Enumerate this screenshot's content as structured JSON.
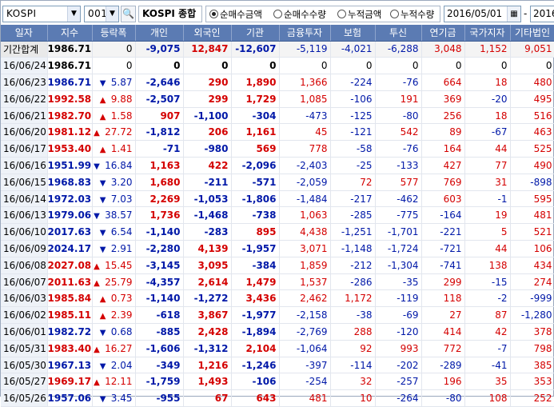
{
  "toolbar": {
    "market": "KOSPI",
    "code": "001",
    "name": "KOSPI 종합",
    "radios": [
      "순매수금액",
      "순매수수량",
      "누적금액",
      "누적수량"
    ],
    "selected_radio": 0,
    "start_date": "2016/05/01",
    "end_date": "2016/"
  },
  "columns": [
    "일자",
    "지수",
    "등락폭",
    "개인",
    "외국인",
    "기관",
    "금융투자",
    "보험",
    "투신",
    "연기금",
    "국가지자",
    "기타법인"
  ],
  "summary": {
    "label": "기간합계",
    "index": "1986.71",
    "change": "0",
    "values": [
      "-9,075",
      "12,847",
      "-12,607",
      "-5,119",
      "-4,021",
      "-6,288",
      "3,048",
      "1,152",
      "9,051"
    ]
  },
  "rows": [
    {
      "date": "16/06/24",
      "index": "1986.71",
      "dir": "none",
      "change": "0",
      "values": [
        "0",
        "0",
        "0",
        "0",
        "0",
        "0",
        "0",
        "0",
        "0"
      ]
    },
    {
      "date": "16/06/23",
      "index": "1986.71",
      "dir": "down",
      "change": "5.87",
      "values": [
        "-2,646",
        "290",
        "1,890",
        "1,366",
        "-224",
        "-76",
        "664",
        "18",
        "480"
      ]
    },
    {
      "date": "16/06/22",
      "index": "1992.58",
      "dir": "up",
      "change": "9.88",
      "values": [
        "-2,507",
        "299",
        "1,729",
        "1,085",
        "-106",
        "191",
        "369",
        "-20",
        "495"
      ]
    },
    {
      "date": "16/06/21",
      "index": "1982.70",
      "dir": "up",
      "change": "1.58",
      "values": [
        "907",
        "-1,100",
        "-304",
        "-473",
        "-125",
        "-80",
        "256",
        "18",
        "516"
      ]
    },
    {
      "date": "16/06/20",
      "index": "1981.12",
      "dir": "up",
      "change": "27.72",
      "values": [
        "-1,812",
        "206",
        "1,161",
        "45",
        "-121",
        "542",
        "89",
        "-67",
        "463"
      ]
    },
    {
      "date": "16/06/17",
      "index": "1953.40",
      "dir": "up",
      "change": "1.41",
      "values": [
        "-71",
        "-980",
        "569",
        "778",
        "-58",
        "-76",
        "164",
        "44",
        "525"
      ]
    },
    {
      "date": "16/06/16",
      "index": "1951.99",
      "dir": "down",
      "change": "16.84",
      "values": [
        "1,163",
        "422",
        "-2,096",
        "-2,403",
        "-25",
        "-133",
        "427",
        "77",
        "490"
      ]
    },
    {
      "date": "16/06/15",
      "index": "1968.83",
      "dir": "down",
      "change": "3.20",
      "values": [
        "1,680",
        "-211",
        "-571",
        "-2,059",
        "72",
        "577",
        "769",
        "31",
        "-898"
      ]
    },
    {
      "date": "16/06/14",
      "index": "1972.03",
      "dir": "down",
      "change": "7.03",
      "values": [
        "2,269",
        "-1,053",
        "-1,806",
        "-1,484",
        "-217",
        "-462",
        "603",
        "-1",
        "595"
      ]
    },
    {
      "date": "16/06/13",
      "index": "1979.06",
      "dir": "down",
      "change": "38.57",
      "values": [
        "1,736",
        "-1,468",
        "-738",
        "1,063",
        "-285",
        "-775",
        "-164",
        "19",
        "481"
      ]
    },
    {
      "date": "16/06/10",
      "index": "2017.63",
      "dir": "down",
      "change": "6.54",
      "values": [
        "-1,140",
        "-283",
        "895",
        "4,438",
        "-1,251",
        "-1,701",
        "-221",
        "5",
        "521"
      ]
    },
    {
      "date": "16/06/09",
      "index": "2024.17",
      "dir": "down",
      "change": "2.91",
      "values": [
        "-2,280",
        "4,139",
        "-1,957",
        "3,071",
        "-1,148",
        "-1,724",
        "-721",
        "44",
        "106"
      ]
    },
    {
      "date": "16/06/08",
      "index": "2027.08",
      "dir": "up",
      "change": "15.45",
      "values": [
        "-3,145",
        "3,095",
        "-384",
        "1,859",
        "-212",
        "-1,304",
        "-741",
        "138",
        "434"
      ]
    },
    {
      "date": "16/06/07",
      "index": "2011.63",
      "dir": "up",
      "change": "25.79",
      "values": [
        "-4,357",
        "2,614",
        "1,479",
        "1,537",
        "-286",
        "-35",
        "299",
        "-15",
        "274"
      ]
    },
    {
      "date": "16/06/03",
      "index": "1985.84",
      "dir": "up",
      "change": "0.73",
      "values": [
        "-1,140",
        "-1,272",
        "3,436",
        "2,462",
        "1,172",
        "-119",
        "118",
        "-2",
        "-999"
      ]
    },
    {
      "date": "16/06/02",
      "index": "1985.11",
      "dir": "up",
      "change": "2.39",
      "values": [
        "-618",
        "3,867",
        "-1,977",
        "-2,158",
        "-38",
        "-69",
        "27",
        "87",
        "-1,280"
      ]
    },
    {
      "date": "16/06/01",
      "index": "1982.72",
      "dir": "down",
      "change": "0.68",
      "values": [
        "-885",
        "2,428",
        "-1,894",
        "-2,769",
        "288",
        "-120",
        "414",
        "42",
        "378"
      ]
    },
    {
      "date": "16/05/31",
      "index": "1983.40",
      "dir": "up",
      "change": "16.27",
      "values": [
        "-1,606",
        "-1,312",
        "2,104",
        "-1,064",
        "92",
        "993",
        "772",
        "-7",
        "798"
      ]
    },
    {
      "date": "16/05/30",
      "index": "1967.13",
      "dir": "down",
      "change": "2.04",
      "values": [
        "-349",
        "1,216",
        "-1,246",
        "-397",
        "-114",
        "-202",
        "-289",
        "-41",
        "385"
      ]
    },
    {
      "date": "16/05/27",
      "index": "1969.17",
      "dir": "up",
      "change": "12.11",
      "values": [
        "-1,759",
        "1,493",
        "-106",
        "-254",
        "32",
        "-257",
        "196",
        "35",
        "353"
      ]
    },
    {
      "date": "16/05/26",
      "index": "1957.06",
      "dir": "down",
      "change": "3.45",
      "values": [
        "-955",
        "67",
        "643",
        "481",
        "10",
        "-264",
        "-80",
        "108",
        "252"
      ]
    }
  ],
  "colors": {
    "up": "#d40000",
    "down": "#0018a8",
    "header": "#5b7bb3"
  }
}
